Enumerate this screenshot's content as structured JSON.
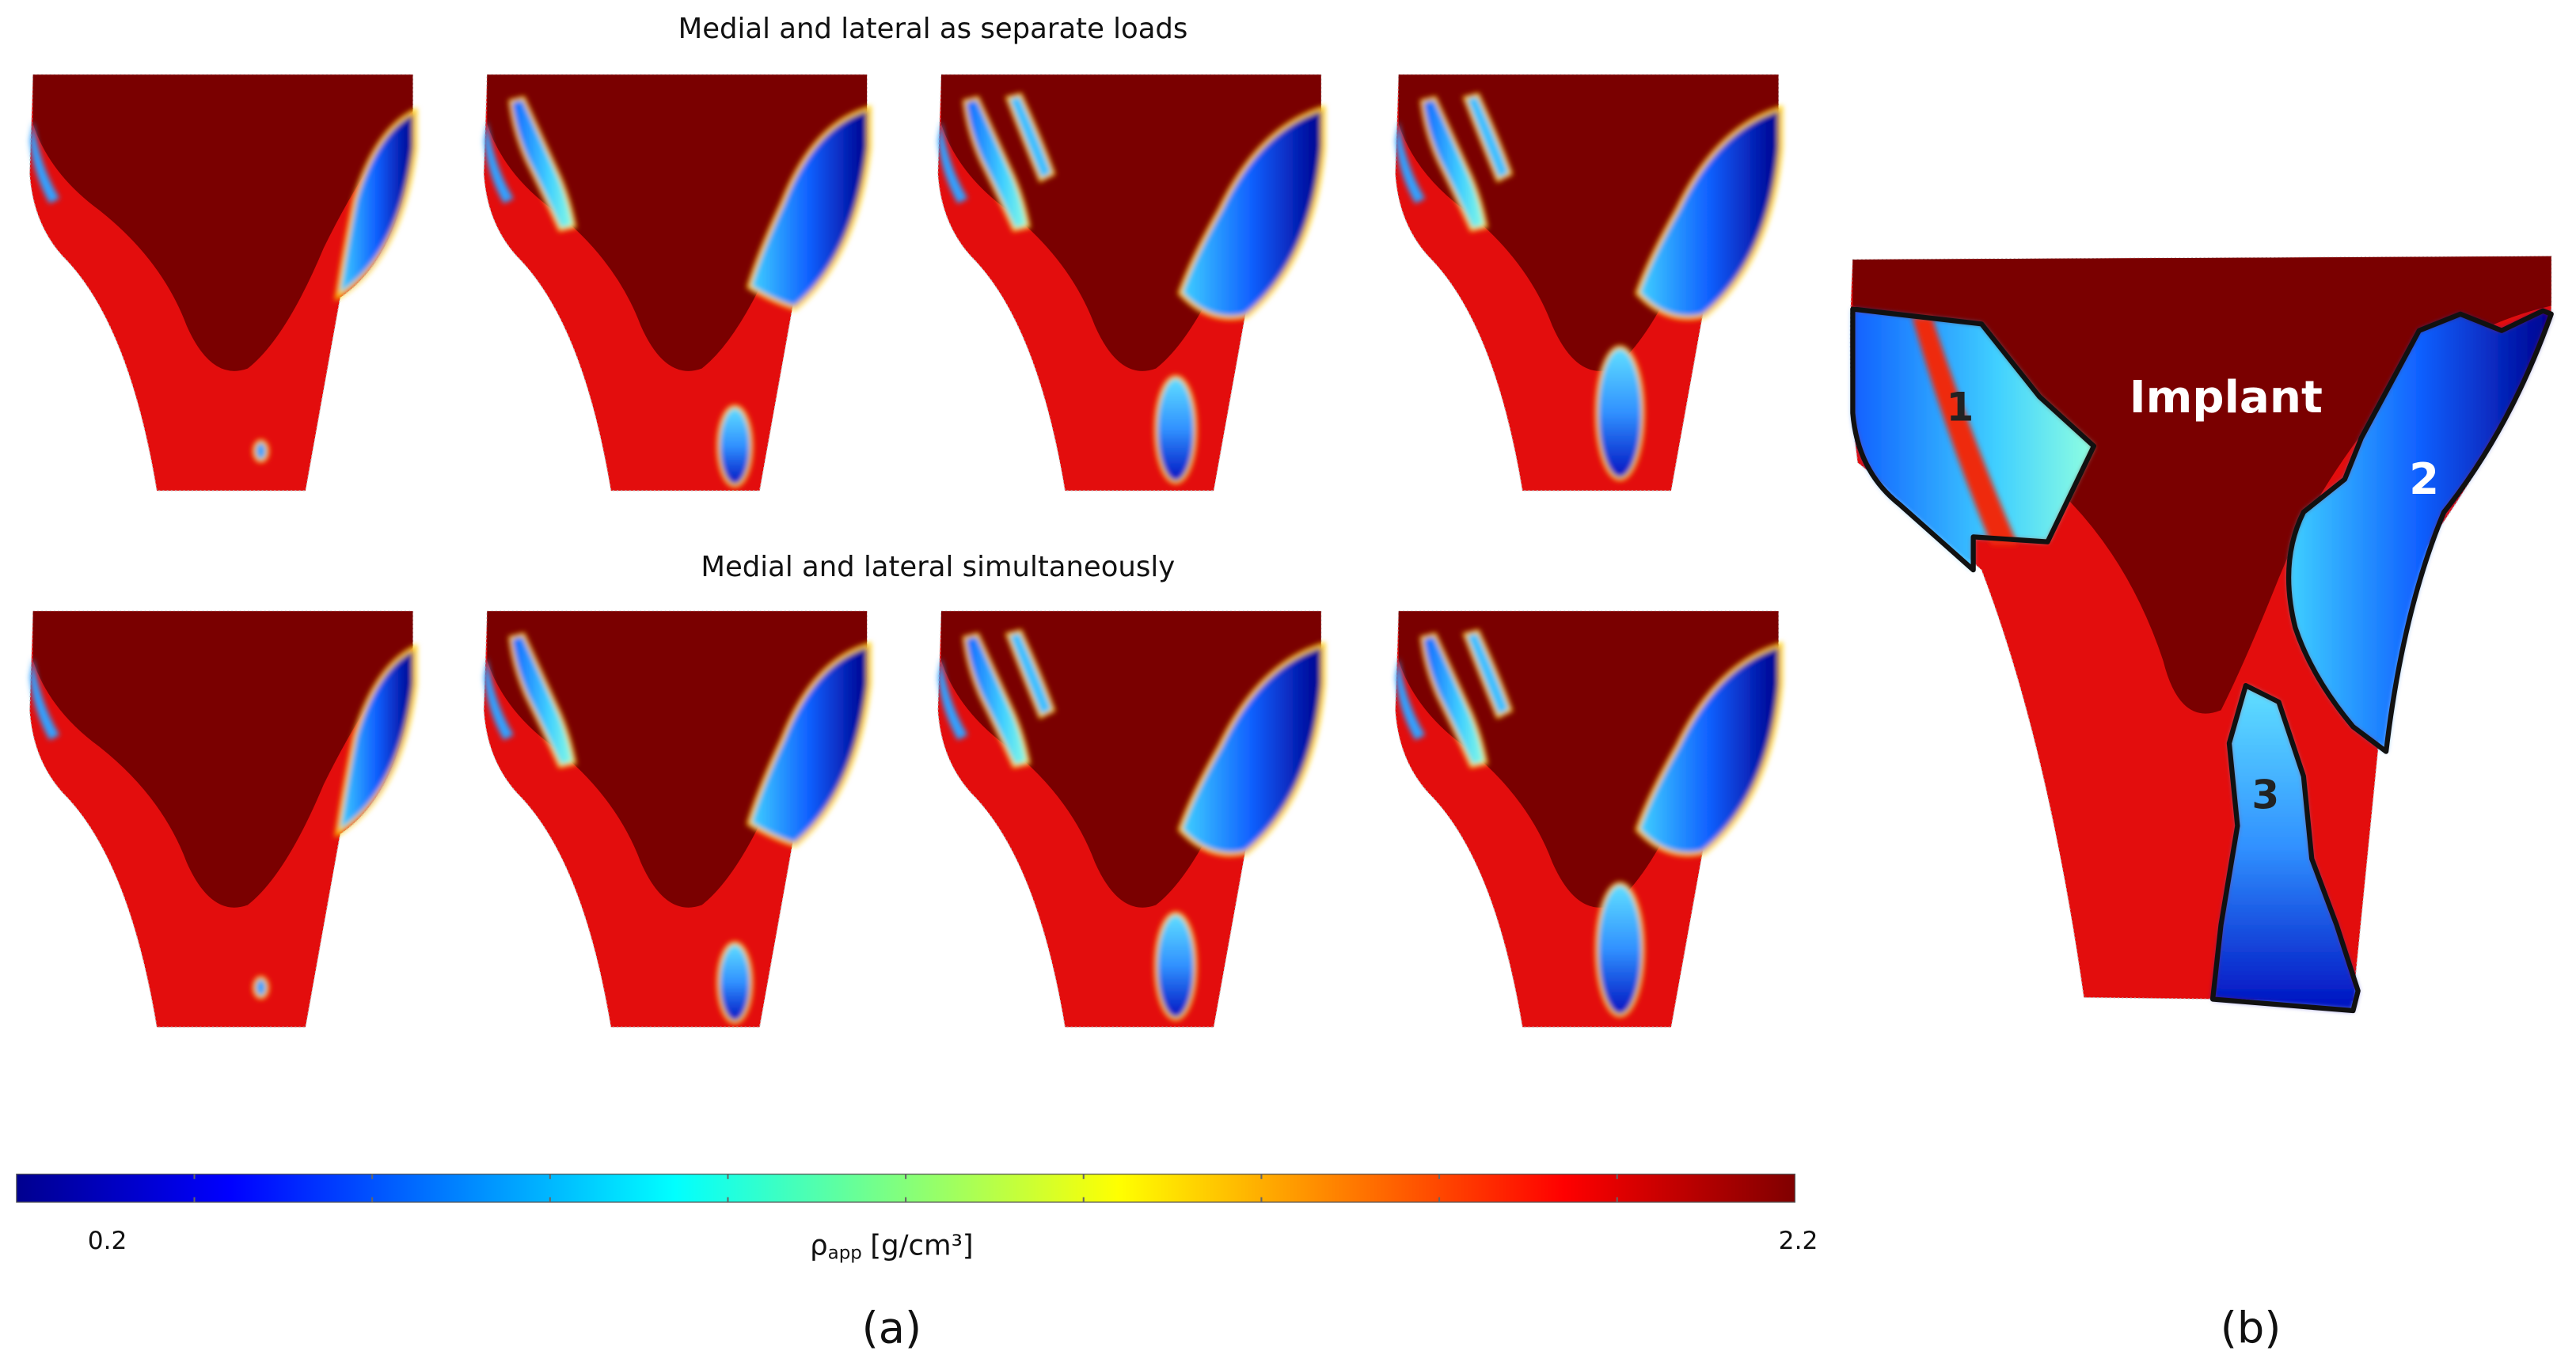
{
  "figure": {
    "panel_a": {
      "title_top": "Medial and lateral as separate loads",
      "title_bottom": "Medial and lateral simultaneously",
      "label": "(a)"
    },
    "panel_b": {
      "implant_label": "Implant",
      "regions": [
        "1",
        "2",
        "3"
      ],
      "label": "(b)"
    },
    "colorbar": {
      "colormap": "jet",
      "min": 0.2,
      "max": 2.2,
      "ticks": [
        0.4,
        0.6,
        0.8,
        1.0,
        1.2,
        1.4,
        1.6,
        1.8,
        2.0
      ],
      "symbol": "ρ",
      "subscript": "app",
      "unit": "[g/cm³]"
    }
  }
}
